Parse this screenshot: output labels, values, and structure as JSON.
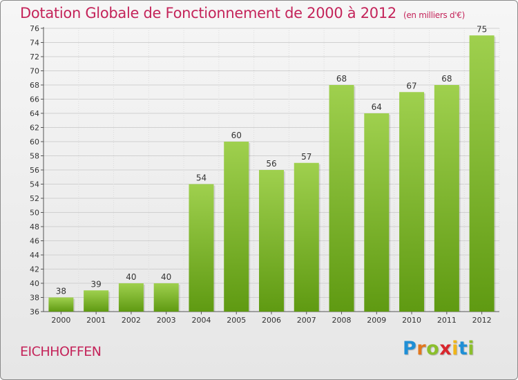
{
  "header": {
    "title": "Dotation Globale de Fonctionnement de 2000 à 2012",
    "unit": "(en milliers d'€)"
  },
  "commune": "EICHHOFFEN",
  "logo": {
    "letters": [
      "P",
      "r",
      "o",
      "x",
      "i",
      "t",
      "i"
    ]
  },
  "colors": {
    "title": "#c4245a",
    "bar_top": "#9fd04e",
    "bar_bottom": "#5f9a12",
    "logo": [
      "#1f8fd6",
      "#e2771e",
      "#8bbf2c",
      "#d9262d",
      "#f0b51a",
      "#1f8fd6",
      "#8bbf2c"
    ]
  },
  "chart_data": {
    "type": "bar",
    "title": "Dotation Globale de Fonctionnement de 2000 à 2012",
    "subtitle": "(en milliers d'€)",
    "categories": [
      "2000",
      "2001",
      "2002",
      "2003",
      "2004",
      "2005",
      "2006",
      "2007",
      "2008",
      "2009",
      "2010",
      "2011",
      "2012"
    ],
    "values": [
      38,
      39,
      40,
      40,
      54,
      60,
      56,
      57,
      68,
      64,
      67,
      68,
      75
    ],
    "ylim": [
      36,
      76
    ],
    "yticks": [
      36,
      38,
      40,
      42,
      44,
      46,
      48,
      50,
      52,
      54,
      56,
      58,
      60,
      62,
      64,
      66,
      68,
      70,
      72,
      74,
      76
    ],
    "grid": true,
    "legend": "none"
  }
}
